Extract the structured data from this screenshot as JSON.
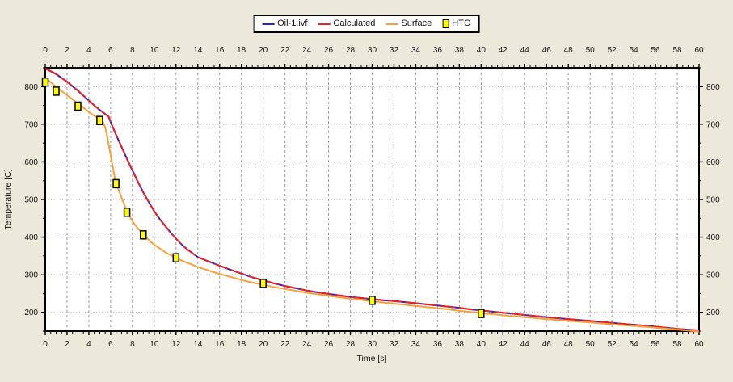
{
  "panel": {
    "background_color": "#ece9db",
    "plot_background": "#ffffff"
  },
  "chart_data": {
    "type": "line",
    "title": "",
    "xlabel": "Time [s]",
    "ylabel": "Temperature [C]",
    "xlim": [
      0,
      60
    ],
    "ylim": [
      150,
      850
    ],
    "x_major_ticks": [
      0,
      2,
      4,
      6,
      8,
      10,
      12,
      14,
      16,
      18,
      20,
      22,
      24,
      26,
      28,
      30,
      32,
      34,
      36,
      38,
      40,
      42,
      44,
      46,
      48,
      50,
      52,
      54,
      56,
      58,
      60
    ],
    "y_major_ticks": [
      200,
      300,
      400,
      500,
      600,
      700,
      800
    ],
    "x_minor_step": 0.5,
    "y_minor_step": 50,
    "grid": true,
    "grid_color": "#9a9a9a",
    "axes_color": "#000000",
    "legend_position": "top-center",
    "axes_mirrored": true,
    "series": [
      {
        "name": "Oil-1.ivf",
        "color": "#2424cc",
        "style": "line",
        "points": [
          [
            0,
            848
          ],
          [
            0.5,
            841
          ],
          [
            1,
            833
          ],
          [
            1.5,
            823
          ],
          [
            2,
            813
          ],
          [
            2.5,
            801
          ],
          [
            3,
            789
          ],
          [
            3.5,
            776
          ],
          [
            4,
            763
          ],
          [
            4.5,
            750
          ],
          [
            5,
            738
          ],
          [
            5.5,
            727
          ],
          [
            5.8,
            721
          ],
          [
            6,
            706
          ],
          [
            6.5,
            672
          ],
          [
            7,
            640
          ],
          [
            7.5,
            608
          ],
          [
            8,
            577
          ],
          [
            8.5,
            547
          ],
          [
            9,
            519
          ],
          [
            9.5,
            493
          ],
          [
            10,
            469
          ],
          [
            10.5,
            448
          ],
          [
            11,
            430
          ],
          [
            11.5,
            412
          ],
          [
            12,
            396
          ],
          [
            12.5,
            381
          ],
          [
            13,
            368
          ],
          [
            14,
            347
          ],
          [
            15,
            335
          ],
          [
            16,
            324
          ],
          [
            17,
            313
          ],
          [
            18,
            303
          ],
          [
            19,
            293
          ],
          [
            20,
            285
          ],
          [
            21,
            277
          ],
          [
            22,
            270
          ],
          [
            23,
            264
          ],
          [
            24,
            258
          ],
          [
            25,
            253
          ],
          [
            26,
            249
          ],
          [
            27,
            245
          ],
          [
            28,
            241
          ],
          [
            29,
            238
          ],
          [
            30,
            235
          ],
          [
            31,
            232
          ],
          [
            32,
            230
          ],
          [
            33,
            227
          ],
          [
            34,
            224
          ],
          [
            35,
            221
          ],
          [
            36,
            218
          ],
          [
            37,
            215
          ],
          [
            38,
            212
          ],
          [
            39,
            208
          ],
          [
            40,
            205
          ],
          [
            41,
            202
          ],
          [
            42,
            199
          ],
          [
            44,
            193
          ],
          [
            46,
            187
          ],
          [
            48,
            182
          ],
          [
            50,
            177
          ],
          [
            52,
            172
          ],
          [
            54,
            167
          ],
          [
            56,
            162
          ],
          [
            58,
            156
          ],
          [
            60,
            152
          ]
        ]
      },
      {
        "name": "Calculated",
        "color": "#e32028",
        "style": "line-dash-overlay",
        "points": [
          [
            0,
            848
          ],
          [
            0.5,
            841
          ],
          [
            1,
            833
          ],
          [
            1.5,
            823
          ],
          [
            2,
            813
          ],
          [
            2.5,
            801
          ],
          [
            3,
            789
          ],
          [
            3.5,
            776
          ],
          [
            4,
            763
          ],
          [
            4.5,
            750
          ],
          [
            5,
            738
          ],
          [
            5.5,
            727
          ],
          [
            5.8,
            721
          ],
          [
            6,
            706
          ],
          [
            6.5,
            672
          ],
          [
            7,
            640
          ],
          [
            7.5,
            608
          ],
          [
            8,
            577
          ],
          [
            8.5,
            547
          ],
          [
            9,
            519
          ],
          [
            9.5,
            493
          ],
          [
            10,
            469
          ],
          [
            10.5,
            448
          ],
          [
            11,
            430
          ],
          [
            11.5,
            412
          ],
          [
            12,
            396
          ],
          [
            12.5,
            381
          ],
          [
            13,
            368
          ],
          [
            14,
            347
          ],
          [
            15,
            335
          ],
          [
            16,
            324
          ],
          [
            17,
            313
          ],
          [
            18,
            303
          ],
          [
            19,
            293
          ],
          [
            20,
            285
          ],
          [
            21,
            277
          ],
          [
            22,
            270
          ],
          [
            23,
            264
          ],
          [
            24,
            258
          ],
          [
            25,
            253
          ],
          [
            26,
            249
          ],
          [
            27,
            245
          ],
          [
            28,
            241
          ],
          [
            29,
            238
          ],
          [
            30,
            235
          ],
          [
            31,
            232
          ],
          [
            32,
            230
          ],
          [
            33,
            227
          ],
          [
            34,
            224
          ],
          [
            35,
            221
          ],
          [
            36,
            218
          ],
          [
            37,
            215
          ],
          [
            38,
            212
          ],
          [
            39,
            208
          ],
          [
            40,
            205
          ],
          [
            41,
            202
          ],
          [
            42,
            199
          ],
          [
            44,
            193
          ],
          [
            46,
            187
          ],
          [
            48,
            182
          ],
          [
            50,
            177
          ],
          [
            52,
            172
          ],
          [
            54,
            167
          ],
          [
            56,
            162
          ],
          [
            58,
            156
          ],
          [
            60,
            152
          ]
        ]
      },
      {
        "name": "Surface",
        "color": "#f7a13c",
        "style": "line",
        "points": [
          [
            0,
            822
          ],
          [
            0.5,
            812
          ],
          [
            1,
            799
          ],
          [
            1.5,
            788
          ],
          [
            2,
            777
          ],
          [
            2.5,
            766
          ],
          [
            3,
            755
          ],
          [
            3.5,
            744
          ],
          [
            4,
            733
          ],
          [
            4.5,
            722
          ],
          [
            5,
            713
          ],
          [
            5.3,
            706
          ],
          [
            5.5,
            692
          ],
          [
            5.7,
            665
          ],
          [
            6,
            618
          ],
          [
            6.3,
            570
          ],
          [
            6.5,
            545
          ],
          [
            7,
            505
          ],
          [
            7.5,
            468
          ],
          [
            8,
            442
          ],
          [
            8.5,
            423
          ],
          [
            9,
            407
          ],
          [
            9.5,
            392
          ],
          [
            10,
            380
          ],
          [
            10.5,
            370
          ],
          [
            11,
            360
          ],
          [
            11.5,
            352
          ],
          [
            12,
            345
          ],
          [
            12.5,
            338
          ],
          [
            13,
            332
          ],
          [
            14,
            321
          ],
          [
            15,
            311
          ],
          [
            16,
            302
          ],
          [
            17,
            294
          ],
          [
            18,
            286
          ],
          [
            19,
            279
          ],
          [
            20,
            273
          ],
          [
            21,
            267
          ],
          [
            22,
            262
          ],
          [
            23,
            257
          ],
          [
            24,
            252
          ],
          [
            25,
            248
          ],
          [
            26,
            244
          ],
          [
            27,
            240
          ],
          [
            28,
            236
          ],
          [
            29,
            233
          ],
          [
            30,
            229
          ],
          [
            31,
            226
          ],
          [
            32,
            223
          ],
          [
            33,
            220
          ],
          [
            34,
            217
          ],
          [
            35,
            214
          ],
          [
            36,
            211
          ],
          [
            37,
            208
          ],
          [
            38,
            204
          ],
          [
            39,
            201
          ],
          [
            40,
            198
          ],
          [
            42,
            192
          ],
          [
            44,
            187
          ],
          [
            46,
            182
          ],
          [
            48,
            177
          ],
          [
            50,
            173
          ],
          [
            52,
            168
          ],
          [
            54,
            164
          ],
          [
            56,
            159
          ],
          [
            58,
            154
          ],
          [
            60,
            149
          ]
        ]
      },
      {
        "name": "HTC",
        "color": "#ffff00",
        "marker_border": "#000000",
        "style": "square-markers",
        "points": [
          [
            0,
            812
          ],
          [
            1,
            788
          ],
          [
            3,
            748
          ],
          [
            5,
            710
          ],
          [
            6.5,
            542
          ],
          [
            7.5,
            466
          ],
          [
            9,
            406
          ],
          [
            12,
            345
          ],
          [
            20,
            277
          ],
          [
            30,
            232
          ],
          [
            40,
            197
          ]
        ]
      }
    ]
  }
}
